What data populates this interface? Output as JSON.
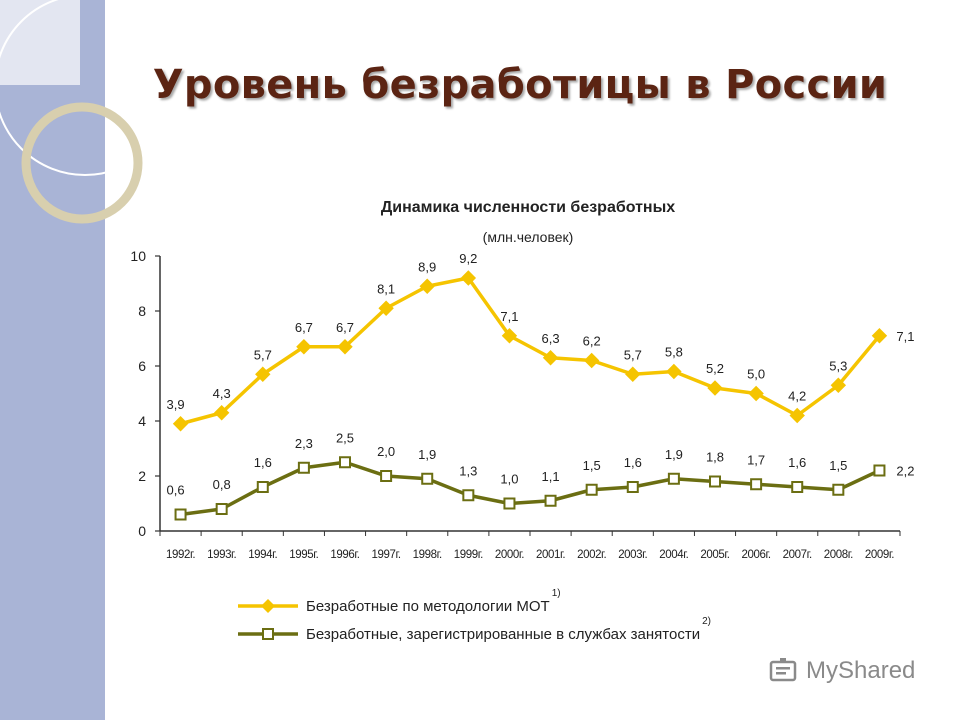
{
  "slide": {
    "title": "Уровень безработицы в России"
  },
  "chart_data": {
    "type": "line",
    "title": "Динамика численности безработных",
    "subtitle": "(млн.человек)",
    "categories": [
      "1992г.",
      "1993г.",
      "1994г.",
      "1995г.",
      "1996г.",
      "1997г.",
      "1998г.",
      "1999г.",
      "2000г.",
      "2001г.",
      "2002г.",
      "2003г.",
      "2004г.",
      "2005г.",
      "2006г.",
      "2007г.",
      "2008г.",
      "2009г."
    ],
    "series": [
      {
        "name": "Безработные по методологии МОТ",
        "note": "1)",
        "color": "#f5c400",
        "marker": "diamond",
        "values": [
          3.9,
          4.3,
          5.7,
          6.7,
          6.7,
          8.1,
          8.9,
          9.2,
          7.1,
          6.3,
          6.2,
          5.7,
          5.8,
          5.2,
          5.0,
          4.2,
          5.3,
          7.1
        ],
        "labels": [
          "3,9",
          "4,3",
          "5,7",
          "6,7",
          "6,7",
          "8,1",
          "8,9",
          "9,2",
          "7,1",
          "6,3",
          "6,2",
          "5,7",
          "5,8",
          "5,2",
          "5,0",
          "4,2",
          "5,3",
          "7,1"
        ]
      },
      {
        "name": "Безработные, зарегистрированные в службах занятости",
        "note": "2)",
        "color": "#6b6e12",
        "marker": "square",
        "values": [
          0.6,
          0.8,
          1.6,
          2.3,
          2.5,
          2.0,
          1.9,
          1.3,
          1.0,
          1.1,
          1.5,
          1.6,
          1.9,
          1.8,
          1.7,
          1.6,
          1.5,
          2.2
        ],
        "labels": [
          "0,6",
          "0,8",
          "1,6",
          "2,3",
          "2,5",
          "2,0",
          "1,9",
          "1,3",
          "1,0",
          "1,1",
          "1,5",
          "1,6",
          "1,9",
          "1,8",
          "1,7",
          "1,6",
          "1,5",
          "2,2"
        ]
      }
    ],
    "yticks": [
      "0",
      "2",
      "4",
      "6",
      "8",
      "10"
    ],
    "ylim": [
      0,
      10
    ],
    "grid": false,
    "legend": "bottom"
  },
  "watermark": {
    "text": "MyShared",
    "icon": "mobile-screen-icon"
  }
}
